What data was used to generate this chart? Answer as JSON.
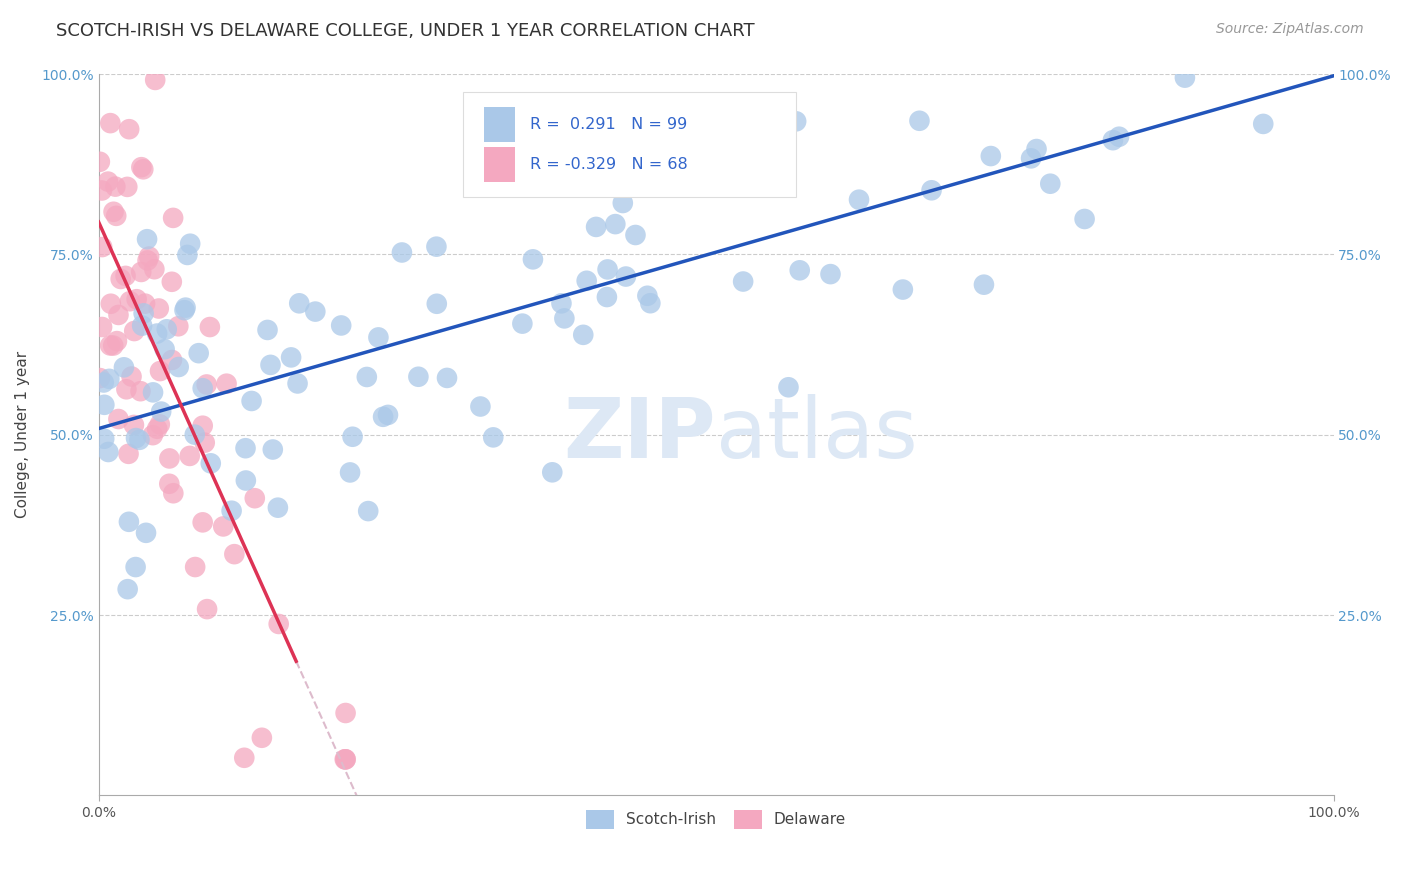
{
  "title": "SCOTCH-IRISH VS DELAWARE COLLEGE, UNDER 1 YEAR CORRELATION CHART",
  "source": "Source: ZipAtlas.com",
  "ylabel": "College, Under 1 year",
  "xlim": [
    0,
    1
  ],
  "ylim": [
    0,
    1
  ],
  "scotch_irish_R": 0.291,
  "scotch_irish_N": 99,
  "delaware_R": -0.329,
  "delaware_N": 68,
  "scotch_color": "#aac8e8",
  "delaware_color": "#f4a8c0",
  "scotch_line_color": "#2255bb",
  "delaware_line_color": "#dd3355",
  "delaware_dashed_color": "#ddbbcc",
  "background_color": "#ffffff",
  "grid_color": "#cccccc",
  "title_fontsize": 13,
  "source_fontsize": 10,
  "axis_label_fontsize": 11,
  "tick_fontsize": 10,
  "legend_fontsize": 11,
  "watermark_color": "#dde8f5",
  "watermark_fontsize": 60,
  "seed": 7
}
